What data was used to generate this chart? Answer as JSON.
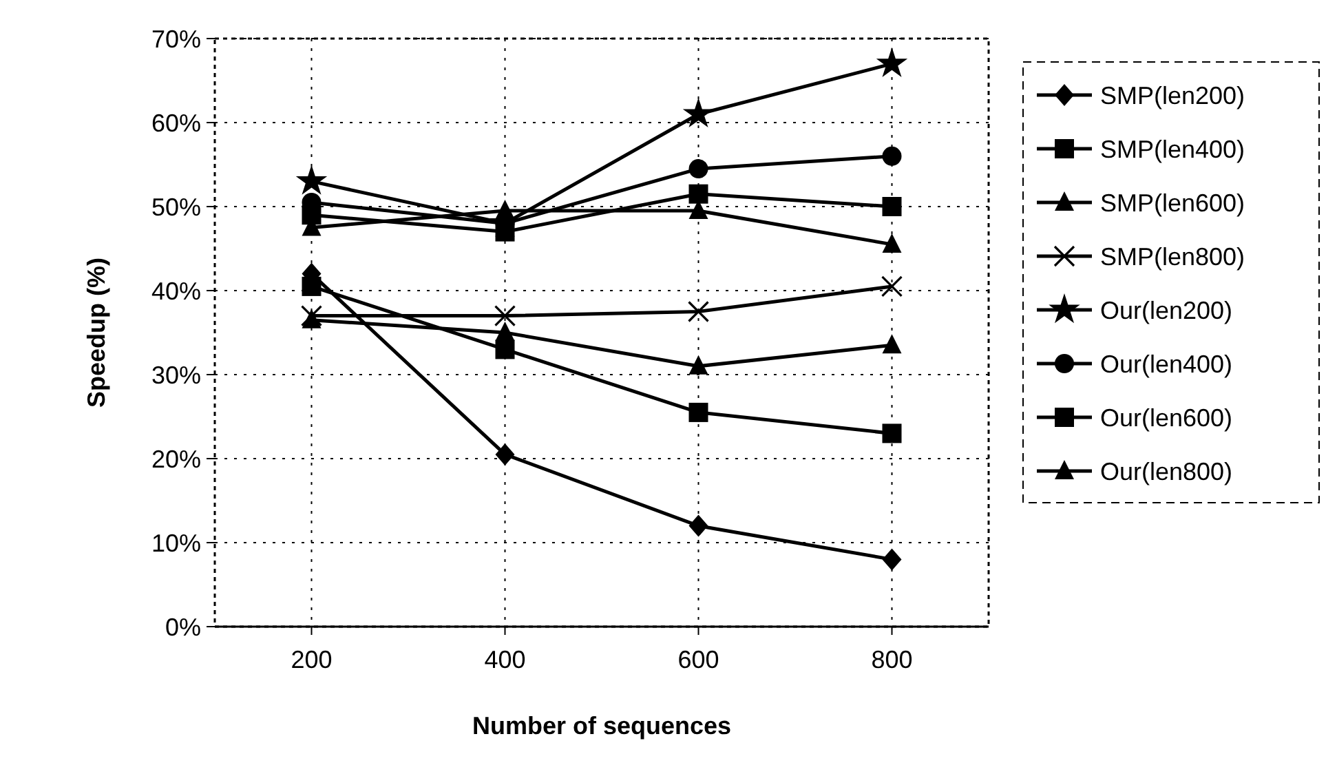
{
  "chart_data": {
    "type": "line",
    "xlabel": "Number of sequences",
    "ylabel": "Speedup (%)",
    "x": [
      200,
      400,
      600,
      800
    ],
    "xlim": [
      100,
      900
    ],
    "xticks": [
      200,
      400,
      600,
      800
    ],
    "ylim": [
      0,
      70
    ],
    "yticks": [
      {
        "value": 0,
        "label": "0%"
      },
      {
        "value": 10,
        "label": "10%"
      },
      {
        "value": 20,
        "label": "20%"
      },
      {
        "value": 30,
        "label": "30%"
      },
      {
        "value": 40,
        "label": "40%"
      },
      {
        "value": 50,
        "label": "50%"
      },
      {
        "value": 60,
        "label": "60%"
      },
      {
        "value": 70,
        "label": "70%"
      }
    ],
    "grid": true,
    "legend": "right",
    "line_style": "solid",
    "series": [
      {
        "name": "SMP(len200)",
        "color": "#000000",
        "marker": "diamond",
        "values": [
          42,
          20.5,
          12,
          8
        ]
      },
      {
        "name": "SMP(len400)",
        "color": "#000000",
        "marker": "square",
        "values": [
          40.5,
          33,
          25.5,
          23
        ]
      },
      {
        "name": "SMP(len600)",
        "color": "#000000",
        "marker": "triangle",
        "values": [
          36.5,
          35,
          31,
          33.5
        ]
      },
      {
        "name": "SMP(len800)",
        "color": "#000000",
        "marker": "cross",
        "values": [
          37,
          37,
          37.5,
          40.5
        ]
      },
      {
        "name": "Our(len200)",
        "color": "#000000",
        "marker": "star",
        "values": [
          53,
          48,
          61,
          67
        ]
      },
      {
        "name": "Our(len400)",
        "color": "#000000",
        "marker": "circle",
        "values": [
          50.5,
          48,
          54.5,
          56
        ]
      },
      {
        "name": "Our(len600)",
        "color": "#000000",
        "marker": "square",
        "values": [
          49,
          47,
          51.5,
          50
        ]
      },
      {
        "name": "Our(len800)",
        "color": "#000000",
        "marker": "triangle",
        "values": [
          47.5,
          49.5,
          49.5,
          45.5
        ]
      }
    ]
  }
}
